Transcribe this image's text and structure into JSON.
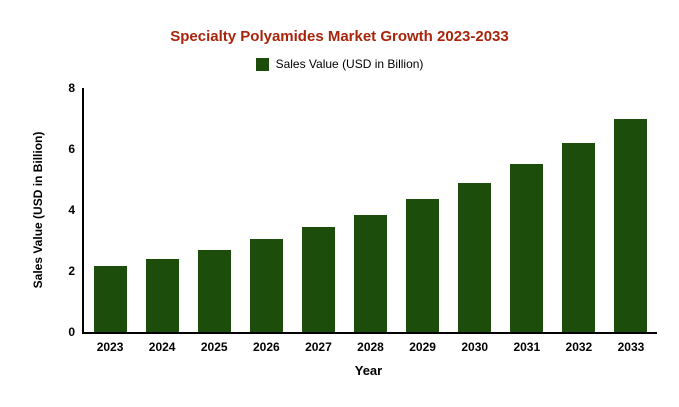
{
  "title": "Specialty Polyamides Market Growth 2023-2033",
  "legend": {
    "label": "Sales Value (USD in Billion)"
  },
  "colors": {
    "title": "#a8250c",
    "bar": "#1d4d0a",
    "axis": "#000000"
  },
  "chart_data": {
    "type": "bar",
    "title": "Specialty Polyamides Market Growth 2023-2033",
    "categories": [
      "2023",
      "2024",
      "2025",
      "2026",
      "2027",
      "2028",
      "2029",
      "2030",
      "2031",
      "2032",
      "2033"
    ],
    "values": [
      2.15,
      2.4,
      2.7,
      3.05,
      3.45,
      3.85,
      4.35,
      4.9,
      5.5,
      6.2,
      7.0
    ],
    "series_name": "Sales Value (USD in Billion)",
    "xlabel": "Year",
    "ylabel": "Sales Value (USD in Billion)",
    "ylim": [
      0,
      8
    ],
    "ytick_step": 2,
    "grid": false,
    "legend_position": "top",
    "bar_color": "#1d4d0a"
  }
}
